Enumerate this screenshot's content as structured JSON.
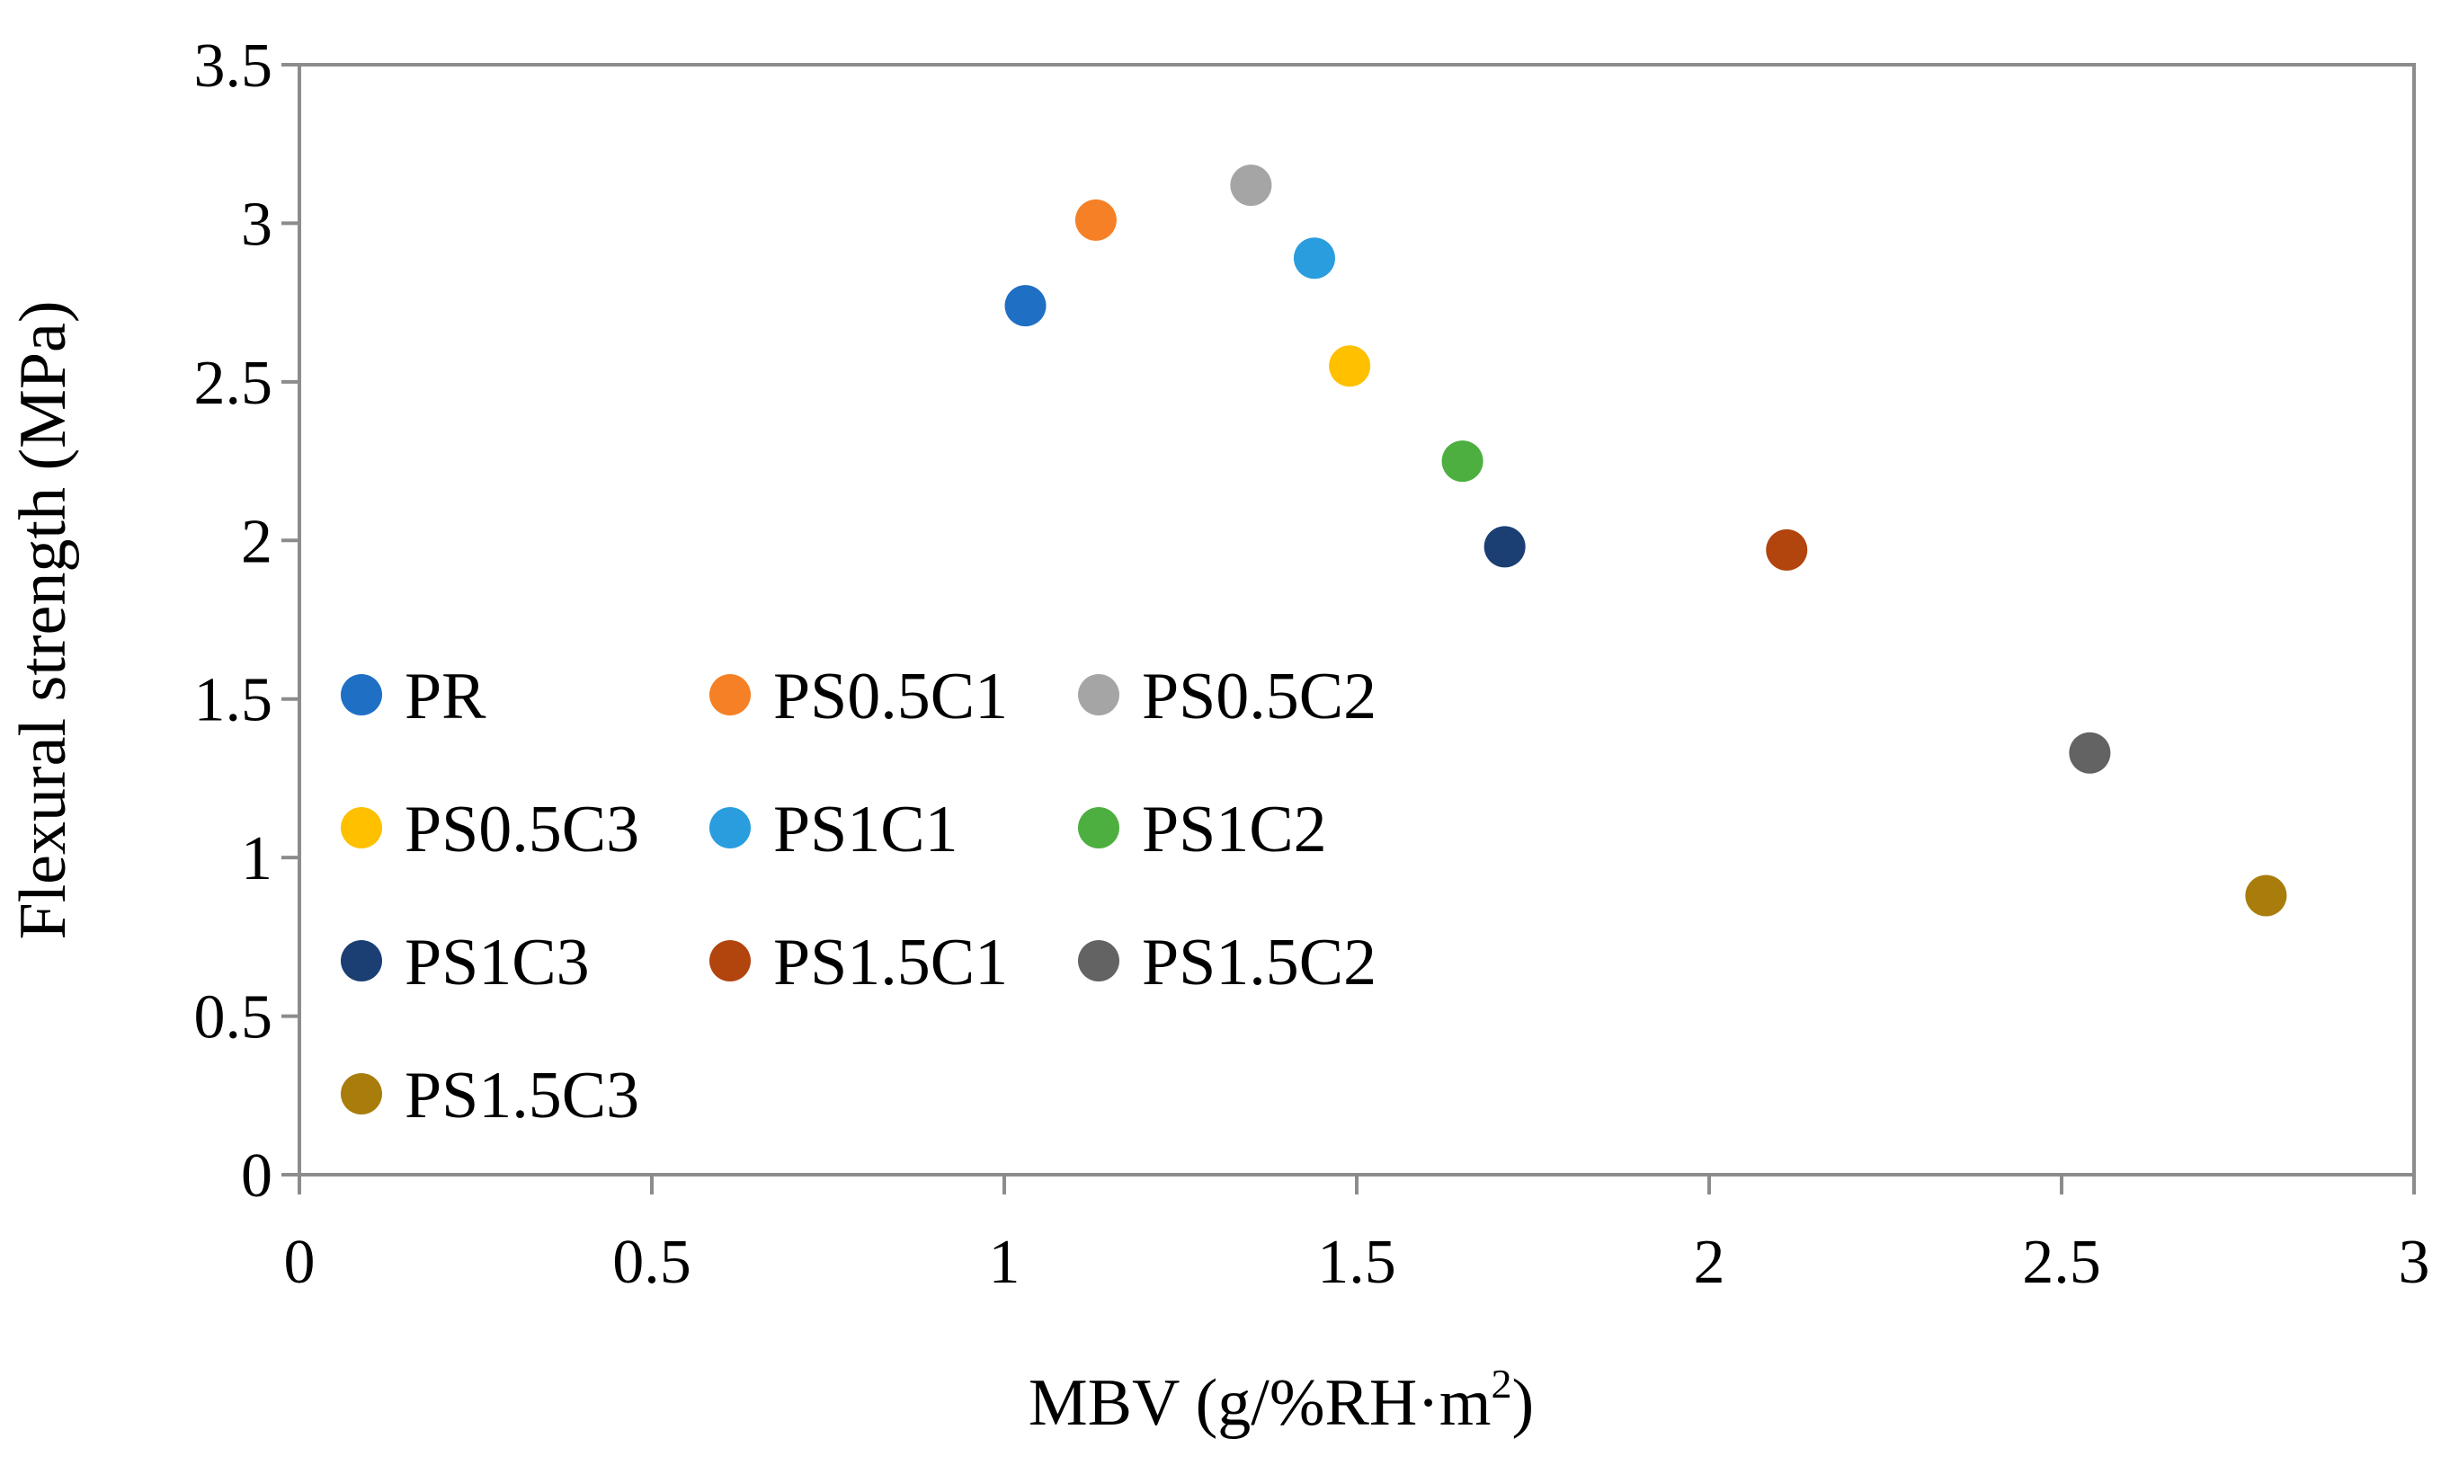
{
  "chart_data": {
    "type": "scatter",
    "title": "",
    "xlabel": "MBV (g/%RH·m",
    "xlabel_superscript": "2",
    "xlabel_close": ")",
    "ylabel": "Flexural strength (MPa)",
    "xlim": [
      0,
      3
    ],
    "ylim": [
      0,
      3.5
    ],
    "x_ticks": [
      0,
      0.5,
      1,
      1.5,
      2,
      2.5,
      3
    ],
    "x_tick_labels": [
      "0",
      "0.5",
      "1",
      "1.5",
      "2",
      "2.5",
      "3"
    ],
    "y_ticks": [
      0,
      0.5,
      1,
      1.5,
      2,
      2.5,
      3,
      3.5
    ],
    "y_tick_labels": [
      "0",
      "0.5",
      "1",
      "1.5",
      "2",
      "2.5",
      "3",
      "3.5"
    ],
    "grid": false,
    "legend_position": "left-inside",
    "series": [
      {
        "name": "PR",
        "x": 1.03,
        "y": 2.74,
        "color": "#1f6fc5"
      },
      {
        "name": "PS0.5C1",
        "x": 1.13,
        "y": 3.01,
        "color": "#f58025"
      },
      {
        "name": "PS0.5C2",
        "x": 1.35,
        "y": 3.12,
        "color": "#a5a5a5"
      },
      {
        "name": "PS0.5C3",
        "x": 1.49,
        "y": 2.55,
        "color": "#ffc000"
      },
      {
        "name": "PS1C1",
        "x": 1.44,
        "y": 2.89,
        "color": "#2a9ddf"
      },
      {
        "name": "PS1C2",
        "x": 1.65,
        "y": 2.25,
        "color": "#4caf3f"
      },
      {
        "name": "PS1C3",
        "x": 1.71,
        "y": 1.98,
        "color": "#1b3f73"
      },
      {
        "name": "PS1.5C1",
        "x": 2.11,
        "y": 1.97,
        "color": "#b2440e"
      },
      {
        "name": "PS1.5C2",
        "x": 2.54,
        "y": 1.33,
        "color": "#636363"
      },
      {
        "name": "PS1.5C3",
        "x": 2.79,
        "y": 0.88,
        "color": "#a87d0c"
      }
    ],
    "legend_columns": 3
  }
}
